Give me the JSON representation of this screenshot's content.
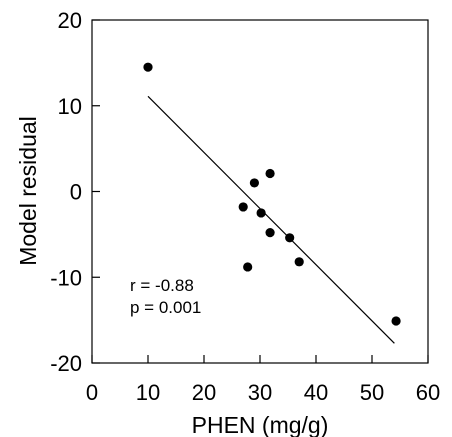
{
  "chart_data": {
    "type": "scatter",
    "title": "",
    "xlabel": "PHEN (mg/g)",
    "ylabel": "Model residual",
    "xlim": [
      0,
      60
    ],
    "ylim": [
      -20,
      20
    ],
    "x_ticks": [
      "0",
      "10",
      "20",
      "30",
      "40",
      "50",
      "60"
    ],
    "y_ticks": [
      "20",
      "10",
      "0",
      "-10",
      "-20"
    ],
    "grid": false,
    "points": [
      {
        "x": 10.0,
        "y": 14.5
      },
      {
        "x": 27.0,
        "y": -1.8
      },
      {
        "x": 27.8,
        "y": -8.8
      },
      {
        "x": 29.0,
        "y": 1.0
      },
      {
        "x": 30.2,
        "y": -2.5
      },
      {
        "x": 31.8,
        "y": 2.1
      },
      {
        "x": 31.8,
        "y": -4.8
      },
      {
        "x": 35.3,
        "y": -5.4
      },
      {
        "x": 37.0,
        "y": -8.2
      },
      {
        "x": 54.3,
        "y": -15.1
      }
    ],
    "fit_line": {
      "x": [
        10.0,
        54.0
      ],
      "y": [
        11.1,
        -17.7
      ]
    },
    "annotations": [
      "r = -0.88",
      "p = 0.001"
    ]
  },
  "colors": {
    "points": "#000000",
    "line": "#000000",
    "axes": "#000000"
  }
}
